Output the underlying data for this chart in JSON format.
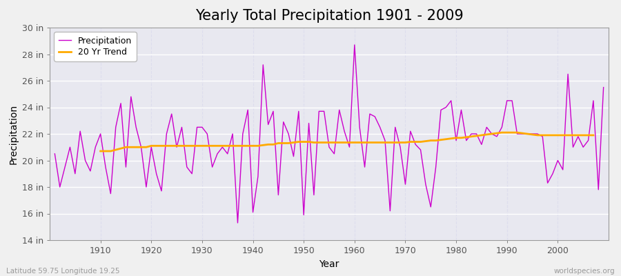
{
  "title": "Yearly Total Precipitation 1901 - 2009",
  "xlabel": "Year",
  "ylabel": "Precipitation",
  "subtitle_left": "Latitude 59.75 Longitude 19.25",
  "subtitle_right": "worldspecies.org",
  "years": [
    1901,
    1902,
    1903,
    1904,
    1905,
    1906,
    1907,
    1908,
    1909,
    1910,
    1911,
    1912,
    1913,
    1914,
    1915,
    1916,
    1917,
    1918,
    1919,
    1920,
    1921,
    1922,
    1923,
    1924,
    1925,
    1926,
    1927,
    1928,
    1929,
    1930,
    1931,
    1932,
    1933,
    1934,
    1935,
    1936,
    1937,
    1938,
    1939,
    1940,
    1941,
    1942,
    1943,
    1944,
    1945,
    1946,
    1947,
    1948,
    1949,
    1950,
    1951,
    1952,
    1953,
    1954,
    1955,
    1956,
    1957,
    1958,
    1959,
    1960,
    1961,
    1962,
    1963,
    1964,
    1965,
    1966,
    1967,
    1968,
    1969,
    1970,
    1971,
    1972,
    1973,
    1974,
    1975,
    1976,
    1977,
    1978,
    1979,
    1980,
    1981,
    1982,
    1983,
    1984,
    1985,
    1986,
    1987,
    1988,
    1989,
    1990,
    1991,
    1992,
    1993,
    1994,
    1995,
    1996,
    1997,
    1998,
    1999,
    2000,
    2001,
    2002,
    2003,
    2004,
    2005,
    2006,
    2007,
    2008,
    2009
  ],
  "precip": [
    20.5,
    18.0,
    19.5,
    21.0,
    19.0,
    22.2,
    20.0,
    19.2,
    21.0,
    22.0,
    19.5,
    17.5,
    22.5,
    24.3,
    19.5,
    24.8,
    22.5,
    21.0,
    18.0,
    21.0,
    19.0,
    17.7,
    22.0,
    23.5,
    21.0,
    22.5,
    19.5,
    19.0,
    22.5,
    22.5,
    22.0,
    19.5,
    20.5,
    21.0,
    20.5,
    22.0,
    15.3,
    22.0,
    23.8,
    16.1,
    18.8,
    27.2,
    22.7,
    23.7,
    17.4,
    22.9,
    22.0,
    20.3,
    23.7,
    15.9,
    22.8,
    17.4,
    23.7,
    23.7,
    21.0,
    20.5,
    23.8,
    22.2,
    21.0,
    28.7,
    22.5,
    19.5,
    23.5,
    23.3,
    22.5,
    21.5,
    16.2,
    22.5,
    21.0,
    18.2,
    22.2,
    21.2,
    20.8,
    18.2,
    16.5,
    19.5,
    23.8,
    24.0,
    24.5,
    21.5,
    23.8,
    21.5,
    22.0,
    22.0,
    21.2,
    22.5,
    22.0,
    21.8,
    22.5,
    24.5,
    24.5,
    22.0,
    22.0,
    22.0,
    22.0,
    22.0,
    21.8,
    18.3,
    19.0,
    20.0,
    19.3,
    26.5,
    21.0,
    21.8,
    21.0,
    21.5,
    24.5,
    17.8,
    25.5
  ],
  "trend": [
    null,
    null,
    null,
    null,
    null,
    null,
    null,
    null,
    null,
    20.7,
    20.7,
    20.7,
    20.8,
    20.9,
    21.0,
    21.0,
    21.0,
    21.0,
    21.0,
    21.1,
    21.1,
    21.1,
    21.1,
    21.1,
    21.1,
    21.1,
    21.1,
    21.1,
    21.1,
    21.1,
    21.1,
    21.1,
    21.1,
    21.1,
    21.1,
    21.1,
    21.1,
    21.1,
    21.1,
    21.1,
    21.1,
    21.15,
    21.2,
    21.2,
    21.3,
    21.3,
    21.3,
    21.35,
    21.4,
    21.4,
    21.4,
    21.35,
    21.35,
    21.35,
    21.35,
    21.35,
    21.35,
    21.35,
    21.35,
    21.35,
    21.35,
    21.35,
    21.35,
    21.35,
    21.35,
    21.35,
    21.35,
    21.35,
    21.35,
    21.35,
    21.4,
    21.4,
    21.4,
    21.45,
    21.5,
    21.5,
    21.55,
    21.6,
    21.65,
    21.7,
    21.7,
    21.75,
    21.8,
    21.85,
    21.9,
    21.95,
    22.0,
    22.05,
    22.1,
    22.1,
    22.1,
    22.1,
    22.05,
    22.0,
    21.95,
    21.9,
    21.9,
    21.9,
    21.9,
    21.9,
    21.9,
    21.9,
    21.9,
    21.9,
    21.9,
    21.9,
    21.9
  ],
  "precip_color": "#cc00cc",
  "trend_color": "#ffaa00",
  "bg_color": "#f0f0f0",
  "plot_bg_color": "#e8e8f0",
  "grid_color_h": "#ffffff",
  "grid_color_v": "#ddddee",
  "ylim": [
    14,
    30
  ],
  "yticks": [
    14,
    16,
    18,
    20,
    22,
    24,
    26,
    28,
    30
  ],
  "xlim": [
    1900,
    2010
  ],
  "xticks": [
    1910,
    1920,
    1930,
    1940,
    1950,
    1960,
    1970,
    1980,
    1990,
    2000
  ],
  "title_fontsize": 15,
  "axis_label_fontsize": 10,
  "tick_fontsize": 9,
  "legend_fontsize": 9
}
